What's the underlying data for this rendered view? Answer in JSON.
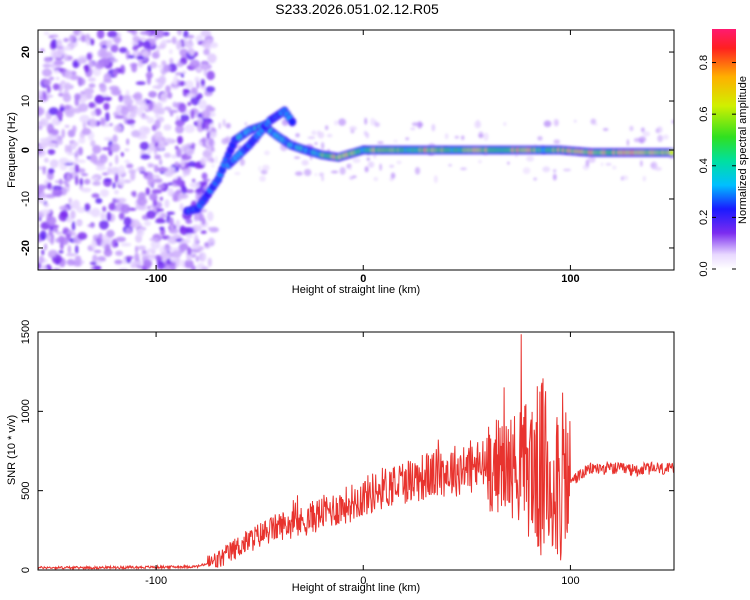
{
  "title": "S233.2026.051.02.12.R05",
  "chart_data": [
    {
      "type": "heatmap",
      "xlabel": "Height of straight line (km)",
      "ylabel": "Frequency (Hz)",
      "xlim": [
        -157,
        150
      ],
      "ylim": [
        -24.5,
        24.5
      ],
      "xticks": [
        -100,
        0,
        100
      ],
      "xtick_labels": [
        "-100",
        "0",
        "100"
      ],
      "yticks": [
        -20,
        -10,
        0,
        10,
        20
      ],
      "ytick_labels": [
        "-20",
        "-10",
        "0",
        "10",
        "20"
      ],
      "colorbar": {
        "label": "Normalized spectral amplitude",
        "range": [
          0,
          0.93
        ],
        "ticks": [
          0,
          0.2,
          0.4,
          0.6,
          0.8
        ],
        "tick_labels": [
          "0.0",
          "0.2",
          "0.4",
          "0.6",
          "0.8"
        ]
      },
      "ridge": [
        {
          "x": -85,
          "y": -12.5
        },
        {
          "x": -80,
          "y": -12
        },
        {
          "x": -75,
          "y": -9
        },
        {
          "x": -70,
          "y": -6
        },
        {
          "x": -66,
          "y": -2
        },
        {
          "x": -62,
          "y": 2
        },
        {
          "x": -55,
          "y": 4
        },
        {
          "x": -48,
          "y": 5
        },
        {
          "x": -42,
          "y": 3
        },
        {
          "x": -35,
          "y": 1
        },
        {
          "x": -28,
          "y": 0
        },
        {
          "x": -20,
          "y": -1
        },
        {
          "x": -12,
          "y": -1.5
        },
        {
          "x": 0,
          "y": 0
        },
        {
          "x": 20,
          "y": 0
        },
        {
          "x": 40,
          "y": 0
        },
        {
          "x": 60,
          "y": 0
        },
        {
          "x": 80,
          "y": 0
        },
        {
          "x": 95,
          "y": 0
        },
        {
          "x": 110,
          "y": -0.5
        },
        {
          "x": 130,
          "y": -0.5
        },
        {
          "x": 150,
          "y": -0.5
        }
      ],
      "branch": [
        {
          "x": -65,
          "y": -3
        },
        {
          "x": -55,
          "y": 1
        },
        {
          "x": -45,
          "y": 6
        },
        {
          "x": -38,
          "y": 8
        },
        {
          "x": -33,
          "y": 5
        }
      ]
    },
    {
      "type": "line",
      "xlabel": "Height of straight line (km)",
      "ylabel": "SNR (10 * v/v)",
      "xlim": [
        -157,
        150
      ],
      "ylim": [
        0,
        1500
      ],
      "xticks": [
        -100,
        0,
        100
      ],
      "xtick_labels": [
        "-100",
        "0",
        "100"
      ],
      "yticks": [
        0,
        500,
        1000,
        1500
      ],
      "ytick_labels": [
        "0",
        "500",
        "1000",
        "1500"
      ],
      "color": "#e8332e",
      "series": [
        {
          "name": "SNR",
          "x": [
            -157,
            -130,
            -100,
            -80,
            -70,
            -60,
            -50,
            -40,
            -30,
            -20,
            -10,
            0,
            10,
            20,
            30,
            40,
            50,
            60,
            70,
            80,
            90,
            100,
            110,
            120,
            130,
            140,
            150
          ],
          "y": [
            15,
            15,
            18,
            22,
            60,
            150,
            220,
            280,
            300,
            360,
            400,
            460,
            520,
            560,
            590,
            620,
            640,
            660,
            660,
            650,
            600,
            560,
            640,
            640,
            630,
            640,
            630
          ]
        }
      ]
    }
  ]
}
